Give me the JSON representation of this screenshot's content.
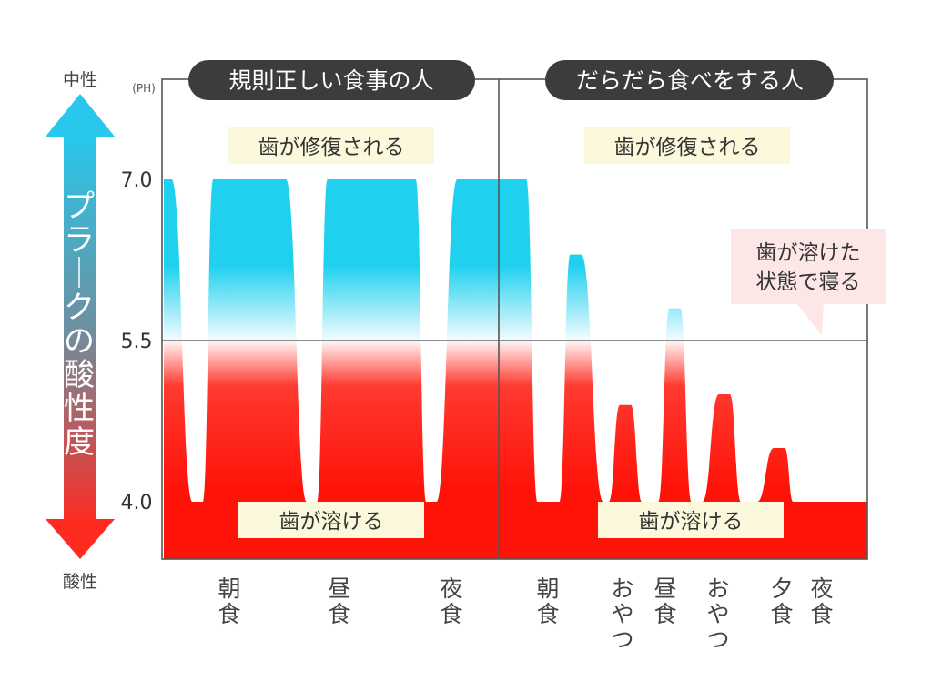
{
  "chart_data": {
    "type": "area",
    "title": "",
    "unit_label": "(PH)",
    "y_ticks": [
      "7.0",
      "5.5",
      "4.0"
    ],
    "y_values": [
      7.0,
      5.5,
      4.0
    ],
    "ylim": [
      3.3,
      8.0
    ],
    "threshold": 5.5,
    "axis_arrow": {
      "top_label": "中性",
      "bottom_label": "酸性",
      "label": "プラークの酸性度"
    },
    "colors": {
      "neutral": "#1fd0ef",
      "acid": "#ff1a12",
      "badge": "#3c3c3c",
      "note_yellow": "#fbf8dc",
      "note_pink": "#fde6e6"
    },
    "panels": [
      {
        "title": "規則正しい食事の人",
        "top_note": "歯が修復される",
        "bottom_note": "歯が溶ける",
        "events": [
          "朝食",
          "昼食",
          "夜食"
        ],
        "series": {
          "x": [
            0,
            0.15,
            0.55,
            0.75,
            0.95,
            1.15,
            1.55,
            1.75,
            2.15,
            2.35,
            2.75,
            2.95,
            3.15,
            3.55,
            3.75,
            4.15,
            4.45,
            4.85,
            5.05,
            5.25,
            5.65,
            5.85,
            6.25,
            6.45
          ],
          "ph": [
            7.0,
            7.0,
            4.0,
            4.0,
            7.0,
            7.0,
            7.0,
            7.0,
            7.0,
            7.0,
            4.0,
            4.0,
            7.0,
            7.0,
            7.0,
            7.0,
            7.0,
            7.0,
            4.0,
            4.0,
            7.0,
            7.0,
            7.0,
            7.0
          ]
        }
      },
      {
        "title": "だらだら食べをする人",
        "top_note": "歯が修復される",
        "bottom_note": "歯が溶ける",
        "side_note": "歯が溶けた状態で寝る",
        "events": [
          "朝食",
          "おやつ",
          "昼食",
          "おやつ",
          "夕食",
          "夜食"
        ],
        "series": {
          "x": [
            0,
            0.5,
            0.7,
            1.1,
            1.3,
            1.5,
            1.9,
            2.0,
            2.2,
            2.4,
            2.6,
            2.9,
            3.1,
            3.3,
            3.5,
            3.7,
            4.0,
            4.2,
            4.4,
            4.7,
            5.0,
            5.2,
            5.35,
            5.5,
            5.7,
            5.9,
            6.1,
            6.7
          ],
          "ph": [
            7.0,
            7.0,
            4.0,
            4.0,
            6.3,
            6.3,
            4.0,
            4.0,
            4.9,
            4.9,
            4.0,
            4.0,
            5.8,
            5.8,
            4.0,
            4.0,
            5.0,
            5.0,
            4.0,
            4.0,
            4.5,
            4.5,
            4.0,
            4.0,
            4.0,
            4.0,
            4.0,
            4.0
          ]
        }
      }
    ]
  }
}
